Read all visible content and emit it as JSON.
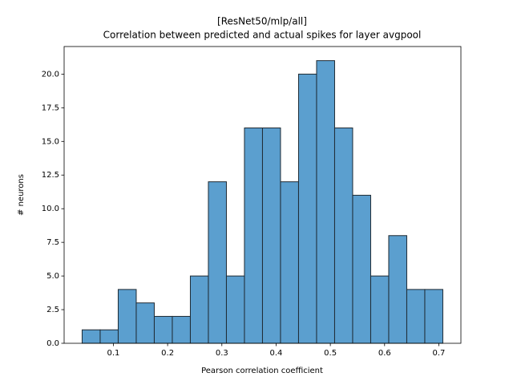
{
  "chart_data": {
    "type": "histogram",
    "title": "[ResNet50/mlp/all]",
    "subtitle": "Correlation between predicted and actual spikes for layer avgpool",
    "x_label": "Pearson correlation coefficient",
    "y_label": "# neurons",
    "bins": [
      0.0424,
      0.07565,
      0.1089,
      0.14215,
      0.1754,
      0.20865,
      0.2419,
      0.27515,
      0.3084,
      0.34165,
      0.3749,
      0.40815,
      0.4414,
      0.47465,
      0.5079,
      0.54115,
      0.5744,
      0.60765,
      0.6409,
      0.67415,
      0.7074
    ],
    "values": [
      1,
      1,
      4,
      3,
      2,
      2,
      5,
      12,
      5,
      16,
      16,
      12,
      20,
      21,
      16,
      11,
      5,
      8,
      4,
      4
    ],
    "color": "#5b9fcf",
    "edge_color": "#1f2a33",
    "xlim": [
      0.0092,
      0.7407
    ],
    "xticks": [
      0.1,
      0.2,
      0.3,
      0.4,
      0.5,
      0.6,
      0.7
    ],
    "ylim": [
      0,
      22.05
    ],
    "yticks": [
      {
        "value": 0,
        "label": "0.0"
      },
      {
        "value": 2.5,
        "label": "2.5"
      },
      {
        "value": 5,
        "label": "5.0"
      },
      {
        "value": 7.5,
        "label": "7.5"
      },
      {
        "value": 10,
        "label": "10.0"
      },
      {
        "value": 12.5,
        "label": "12.5"
      },
      {
        "value": 15,
        "label": "15.0"
      },
      {
        "value": 17.5,
        "label": "17.5"
      },
      {
        "value": 20,
        "label": "20.0"
      }
    ],
    "grid": false
  }
}
